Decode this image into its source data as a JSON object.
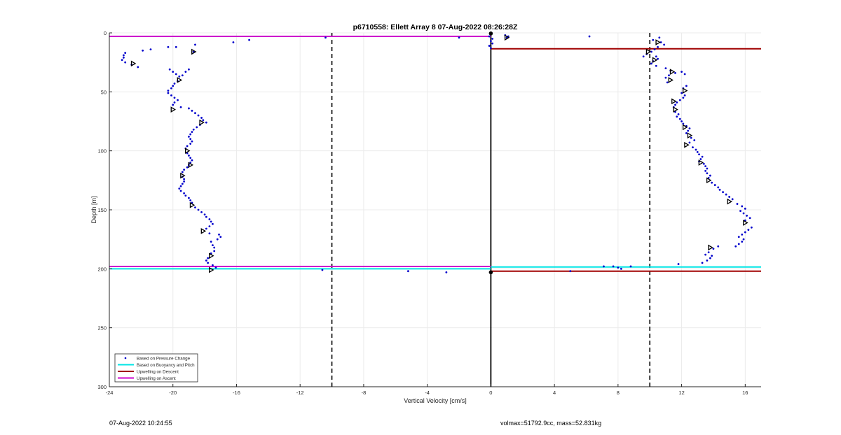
{
  "footer": {
    "timestamp": "07-Aug-2022 10:24:55",
    "stats": "volmax=51792.9cc, mass=52.831kg"
  },
  "chart_data": {
    "type": "scatter",
    "title": "p6710558: Ellett Array 8 07-Aug-2022 08:26:28Z",
    "xlabel": "Vertical Velocity [cm/s]",
    "ylabel": "Depth [m]",
    "xlim": [
      -24,
      17
    ],
    "ylim": [
      0,
      300
    ],
    "y_reversed": true,
    "grid": true,
    "xticks": [
      -24,
      -20,
      -16,
      -12,
      -8,
      -4,
      0,
      4,
      8,
      12,
      16
    ],
    "yticks": [
      0,
      50,
      100,
      150,
      200,
      250,
      300
    ],
    "legend_position": "bottom-left",
    "colors": {
      "pressure": "#0000cc",
      "buoyancy": "#00e5e5",
      "descent": "#a00000",
      "ascent": "#cc00cc",
      "triangle": "#000000",
      "reference_line": "#000000"
    },
    "legend": [
      {
        "label": "Based on Pressure Change",
        "key": "pressure",
        "kind": "dot"
      },
      {
        "label": "Based on Buoyancy and Pitch",
        "key": "buoyancy",
        "kind": "line"
      },
      {
        "label": "Upwelling on Descent",
        "key": "descent",
        "kind": "line"
      },
      {
        "label": "Upwelling on Ascent",
        "key": "ascent",
        "kind": "line"
      }
    ],
    "reference_lines": [
      {
        "type": "vertical",
        "x": -10,
        "style": "dashed"
      },
      {
        "type": "vertical",
        "x": 10,
        "style": "dashed"
      },
      {
        "type": "vertical",
        "x": 0,
        "style": "solid"
      }
    ],
    "horizontal_segments": [
      {
        "key": "ascent",
        "y": 3,
        "x_range": [
          -24,
          0
        ]
      },
      {
        "key": "ascent",
        "y": 198,
        "x_range": [
          -24,
          0
        ]
      },
      {
        "key": "buoyancy",
        "y": 200,
        "x_range": [
          -24,
          0
        ]
      },
      {
        "key": "descent",
        "y": 13.5,
        "x_range": [
          0,
          17
        ]
      },
      {
        "key": "buoyancy",
        "y": 198.5,
        "x_range": [
          0,
          17
        ]
      },
      {
        "key": "descent",
        "y": 202,
        "x_range": [
          0,
          17
        ]
      }
    ],
    "series": [
      {
        "name": "Based on Pressure Change",
        "key": "pressure",
        "points": [
          [
            -23.0,
            17
          ],
          [
            -23.1,
            19
          ],
          [
            -23.1,
            21
          ],
          [
            -23.2,
            23
          ],
          [
            -23.0,
            25
          ],
          [
            -22.6,
            27
          ],
          [
            -22.2,
            29
          ],
          [
            -21.9,
            15
          ],
          [
            -21.4,
            14
          ],
          [
            -20.3,
            12
          ],
          [
            -19.8,
            12
          ],
          [
            -18.7,
            16
          ],
          [
            -18.6,
            10
          ],
          [
            -16.2,
            8
          ],
          [
            -15.2,
            6
          ],
          [
            -10.4,
            4
          ],
          [
            -2.0,
            4
          ],
          [
            -20.2,
            31
          ],
          [
            -20.0,
            33
          ],
          [
            -19.8,
            35
          ],
          [
            -19.6,
            37
          ],
          [
            -19.4,
            36
          ],
          [
            -19.2,
            33
          ],
          [
            -19.0,
            31
          ],
          [
            -19.7,
            41
          ],
          [
            -19.9,
            43
          ],
          [
            -20.0,
            45
          ],
          [
            -20.1,
            47
          ],
          [
            -20.3,
            49
          ],
          [
            -20.3,
            51
          ],
          [
            -20.1,
            53
          ],
          [
            -19.9,
            55
          ],
          [
            -19.7,
            57
          ],
          [
            -19.9,
            59
          ],
          [
            -20.0,
            61
          ],
          [
            -19.5,
            63
          ],
          [
            -19.0,
            64
          ],
          [
            -18.8,
            66
          ],
          [
            -18.6,
            68
          ],
          [
            -18.4,
            70
          ],
          [
            -18.2,
            72
          ],
          [
            -18.1,
            74
          ],
          [
            -17.9,
            76
          ],
          [
            -18.3,
            78
          ],
          [
            -18.5,
            80
          ],
          [
            -18.7,
            82
          ],
          [
            -18.8,
            84
          ],
          [
            -18.9,
            86
          ],
          [
            -19.0,
            88
          ],
          [
            -18.9,
            90
          ],
          [
            -18.8,
            92
          ],
          [
            -18.9,
            94
          ],
          [
            -19.1,
            96
          ],
          [
            -19.2,
            98
          ],
          [
            -19.1,
            102
          ],
          [
            -19.0,
            104
          ],
          [
            -18.9,
            106
          ],
          [
            -18.8,
            108
          ],
          [
            -18.9,
            110
          ],
          [
            -19.0,
            112
          ],
          [
            -19.1,
            114
          ],
          [
            -19.3,
            116
          ],
          [
            -19.4,
            118
          ],
          [
            -19.4,
            122
          ],
          [
            -19.3,
            124
          ],
          [
            -19.3,
            126
          ],
          [
            -19.4,
            128
          ],
          [
            -19.5,
            130
          ],
          [
            -19.6,
            132
          ],
          [
            -19.5,
            134
          ],
          [
            -19.3,
            136
          ],
          [
            -19.2,
            138
          ],
          [
            -19.0,
            140
          ],
          [
            -18.9,
            142
          ],
          [
            -18.8,
            144
          ],
          [
            -18.6,
            148
          ],
          [
            -18.4,
            150
          ],
          [
            -18.2,
            152
          ],
          [
            -18.0,
            154
          ],
          [
            -17.9,
            156
          ],
          [
            -17.7,
            158
          ],
          [
            -17.6,
            160
          ],
          [
            -17.5,
            162
          ],
          [
            -17.7,
            164
          ],
          [
            -17.9,
            166
          ],
          [
            -17.7,
            170
          ],
          [
            -17.1,
            171
          ],
          [
            -17.0,
            173
          ],
          [
            -17.2,
            175
          ],
          [
            -17.6,
            177
          ],
          [
            -17.5,
            180
          ],
          [
            -17.4,
            182
          ],
          [
            -17.4,
            185
          ],
          [
            -17.6,
            187
          ],
          [
            -17.8,
            191
          ],
          [
            -17.9,
            193
          ],
          [
            -17.8,
            195
          ],
          [
            -17.5,
            197
          ],
          [
            -17.3,
            199
          ],
          [
            -10.6,
            201
          ],
          [
            -5.2,
            202
          ],
          [
            -2.8,
            203
          ],
          [
            6.2,
            3
          ],
          [
            10.2,
            6
          ],
          [
            10.6,
            4
          ],
          [
            10.7,
            8
          ],
          [
            10.9,
            10
          ],
          [
            10.5,
            12
          ],
          [
            10.3,
            14
          ],
          [
            10.1,
            16
          ],
          [
            9.8,
            18
          ],
          [
            9.6,
            20
          ],
          [
            10.4,
            20
          ],
          [
            10.5,
            22
          ],
          [
            10.2,
            24
          ],
          [
            10.1,
            26
          ],
          [
            10.4,
            28
          ],
          [
            11.0,
            30
          ],
          [
            11.3,
            32
          ],
          [
            11.6,
            34
          ],
          [
            11.2,
            36
          ],
          [
            11.0,
            38
          ],
          [
            11.1,
            42
          ],
          [
            12.0,
            33
          ],
          [
            12.2,
            35
          ],
          [
            12.3,
            45
          ],
          [
            12.1,
            47
          ],
          [
            12.0,
            51
          ],
          [
            12.2,
            53
          ],
          [
            12.1,
            55
          ],
          [
            11.9,
            57
          ],
          [
            11.7,
            59
          ],
          [
            11.6,
            61
          ],
          [
            11.5,
            63
          ],
          [
            11.6,
            67
          ],
          [
            11.8,
            69
          ],
          [
            11.7,
            71
          ],
          [
            11.9,
            73
          ],
          [
            12.0,
            75
          ],
          [
            12.1,
            77
          ],
          [
            12.3,
            79
          ],
          [
            12.5,
            81
          ],
          [
            12.4,
            83
          ],
          [
            12.3,
            85
          ],
          [
            12.6,
            89
          ],
          [
            12.8,
            91
          ],
          [
            12.5,
            93
          ],
          [
            12.7,
            97
          ],
          [
            12.9,
            99
          ],
          [
            13.0,
            101
          ],
          [
            13.1,
            103
          ],
          [
            13.3,
            105
          ],
          [
            13.2,
            107
          ],
          [
            13.1,
            109
          ],
          [
            13.4,
            111
          ],
          [
            13.5,
            113
          ],
          [
            13.6,
            115
          ],
          [
            13.5,
            117
          ],
          [
            13.6,
            119
          ],
          [
            13.8,
            121
          ],
          [
            13.7,
            123
          ],
          [
            13.9,
            127
          ],
          [
            14.1,
            129
          ],
          [
            14.3,
            131
          ],
          [
            14.4,
            133
          ],
          [
            14.6,
            135
          ],
          [
            14.8,
            137
          ],
          [
            15.0,
            139
          ],
          [
            15.2,
            141
          ],
          [
            15.5,
            145
          ],
          [
            15.8,
            147
          ],
          [
            16.0,
            149
          ],
          [
            15.7,
            151
          ],
          [
            15.9,
            153
          ],
          [
            16.1,
            155
          ],
          [
            16.3,
            157
          ],
          [
            16.0,
            159
          ],
          [
            16.4,
            165
          ],
          [
            16.2,
            167
          ],
          [
            16.0,
            169
          ],
          [
            15.8,
            171
          ],
          [
            15.6,
            173
          ],
          [
            15.9,
            175
          ],
          [
            15.8,
            177
          ],
          [
            15.6,
            179
          ],
          [
            15.4,
            181
          ],
          [
            14.3,
            181
          ],
          [
            14.0,
            183
          ],
          [
            13.7,
            186
          ],
          [
            13.5,
            188
          ],
          [
            13.9,
            189
          ],
          [
            13.8,
            191
          ],
          [
            13.6,
            193
          ],
          [
            13.3,
            195
          ],
          [
            11.8,
            196
          ],
          [
            7.1,
            198
          ],
          [
            7.7,
            198
          ],
          [
            8.0,
            199
          ],
          [
            8.2,
            200
          ],
          [
            8.8,
            198
          ],
          [
            5.0,
            202
          ],
          [
            0.9,
            2
          ],
          [
            1.0,
            4
          ],
          [
            1.1,
            3
          ],
          [
            0.0,
            1
          ],
          [
            -0.1,
            3
          ],
          [
            0.1,
            5
          ],
          [
            0.0,
            7
          ],
          [
            0.1,
            9
          ],
          [
            -0.1,
            11
          ],
          [
            0.0,
            13
          ]
        ]
      },
      {
        "name": "triangles",
        "key": "triangle",
        "points": [
          [
            -18.7,
            16
          ],
          [
            -22.5,
            26
          ],
          [
            -19.6,
            40
          ],
          [
            -20.0,
            65
          ],
          [
            -18.2,
            76
          ],
          [
            -19.1,
            100
          ],
          [
            -18.9,
            112
          ],
          [
            -19.4,
            121
          ],
          [
            -18.8,
            146
          ],
          [
            -18.1,
            168
          ],
          [
            -17.6,
            189
          ],
          [
            -17.6,
            201
          ],
          [
            10.5,
            8
          ],
          [
            9.9,
            16
          ],
          [
            10.3,
            23
          ],
          [
            11.4,
            33
          ],
          [
            11.3,
            40
          ],
          [
            12.2,
            49
          ],
          [
            11.5,
            58
          ],
          [
            11.6,
            65
          ],
          [
            12.2,
            80
          ],
          [
            12.5,
            87
          ],
          [
            12.3,
            95
          ],
          [
            13.2,
            110
          ],
          [
            13.7,
            125
          ],
          [
            15.0,
            143
          ],
          [
            16.0,
            161
          ],
          [
            13.8,
            182
          ],
          [
            1.0,
            4
          ]
        ]
      },
      {
        "name": "markers at zero",
        "key": "triangle",
        "points": [
          [
            0.0,
            0.5
          ],
          [
            0.0,
            203
          ]
        ]
      }
    ]
  }
}
